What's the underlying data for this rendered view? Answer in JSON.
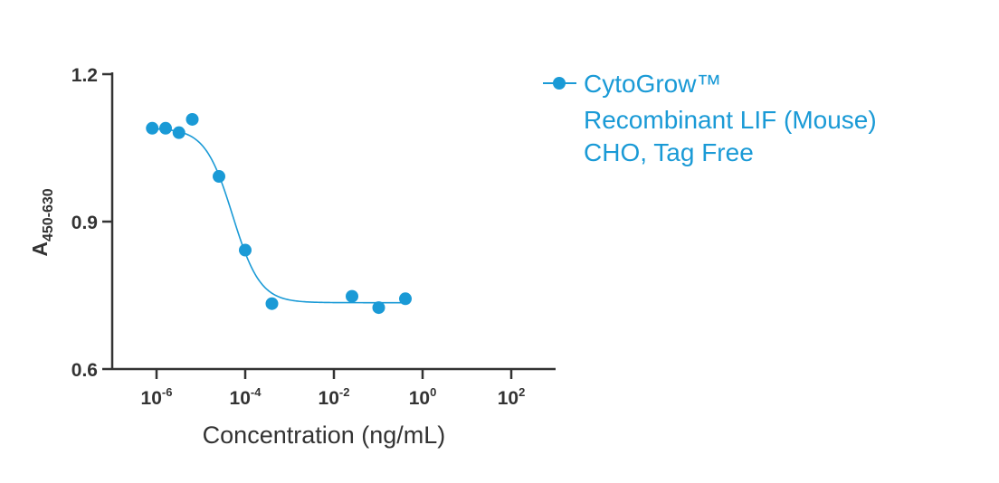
{
  "chart_data": {
    "type": "scatter",
    "xscale": "log10",
    "xlim": [
      1e-07,
      1000
    ],
    "ylim": [
      0.6,
      1.2
    ],
    "y_ticks": [
      "0.6",
      "0.9",
      "1.2"
    ],
    "x_ticks": [
      {
        "base": "10",
        "exp": "-6"
      },
      {
        "base": "10",
        "exp": "-4"
      },
      {
        "base": "10",
        "exp": "-2"
      },
      {
        "base": "10",
        "exp": "0"
      },
      {
        "base": "10",
        "exp": "2"
      }
    ],
    "xlabel": "Concentration (ng/mL)",
    "ylabel": {
      "main": "A",
      "sub": "450-630"
    },
    "color": "#1a9ad6",
    "legend_position": "top-right",
    "series": [
      {
        "name_lines": [
          "CytoGrow™",
          "Recombinant LIF (Mouse)",
          "CHO, Tag Free"
        ],
        "points": [
          {
            "x": 8e-07,
            "y": 1.09
          },
          {
            "x": 1.6e-06,
            "y": 1.09
          },
          {
            "x": 3.2e-06,
            "y": 1.081
          },
          {
            "x": 6.4e-06,
            "y": 1.108
          },
          {
            "x": 2.56e-05,
            "y": 0.992
          },
          {
            "x": 0.0001,
            "y": 0.842
          },
          {
            "x": 0.0004,
            "y": 0.733
          },
          {
            "x": 0.0256,
            "y": 0.748
          },
          {
            "x": 0.1024,
            "y": 0.725
          },
          {
            "x": 0.4096,
            "y": 0.743
          }
        ],
        "fit": {
          "model": "4PL",
          "top": 1.09,
          "bottom": 0.735,
          "ec50": 5.2e-05,
          "hill": 1.4
        }
      }
    ]
  }
}
